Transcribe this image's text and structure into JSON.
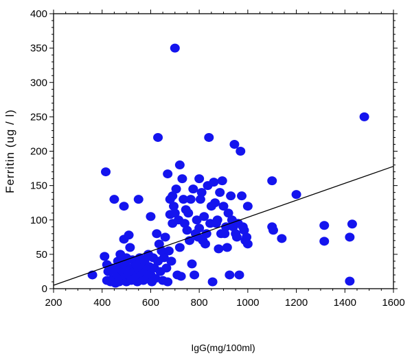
{
  "chart_data": {
    "type": "scatter",
    "title": "",
    "xlabel": "IgG(mg/100ml)",
    "ylabel": "Ferritin (ug / l)",
    "xlim": [
      200,
      1600
    ],
    "ylim": [
      0,
      400
    ],
    "xticks": [
      200,
      400,
      600,
      800,
      1000,
      1200,
      1400,
      1600
    ],
    "yticks": [
      0,
      50,
      100,
      150,
      200,
      250,
      300,
      350,
      400
    ],
    "grid": false,
    "legend": "none",
    "colors": {
      "points": "#1414ee",
      "fit_line": "#000000",
      "axes": "#000000"
    },
    "series": [
      {
        "points": [
          [
            360,
            20
          ],
          [
            410,
            47
          ],
          [
            415,
            170
          ],
          [
            420,
            35
          ],
          [
            420,
            12
          ],
          [
            425,
            25
          ],
          [
            435,
            10
          ],
          [
            440,
            30
          ],
          [
            445,
            15
          ],
          [
            450,
            130
          ],
          [
            455,
            8
          ],
          [
            460,
            20
          ],
          [
            465,
            40
          ],
          [
            470,
            10
          ],
          [
            470,
            30
          ],
          [
            475,
            50
          ],
          [
            480,
            15
          ],
          [
            485,
            25
          ],
          [
            490,
            120
          ],
          [
            490,
            72
          ],
          [
            495,
            35
          ],
          [
            500,
            10
          ],
          [
            500,
            45
          ],
          [
            505,
            20
          ],
          [
            510,
            78
          ],
          [
            515,
            60
          ],
          [
            520,
            30
          ],
          [
            520,
            12
          ],
          [
            525,
            42
          ],
          [
            530,
            25
          ],
          [
            535,
            15
          ],
          [
            540,
            35
          ],
          [
            545,
            10
          ],
          [
            550,
            130
          ],
          [
            550,
            28
          ],
          [
            555,
            45
          ],
          [
            560,
            20
          ],
          [
            565,
            35
          ],
          [
            570,
            12
          ],
          [
            575,
            40
          ],
          [
            580,
            25
          ],
          [
            585,
            15
          ],
          [
            590,
            50
          ],
          [
            595,
            32
          ],
          [
            600,
            105
          ],
          [
            600,
            20
          ],
          [
            605,
            10
          ],
          [
            610,
            45
          ],
          [
            615,
            30
          ],
          [
            620,
            15
          ],
          [
            625,
            80
          ],
          [
            630,
            220
          ],
          [
            630,
            40
          ],
          [
            635,
            65
          ],
          [
            640,
            25
          ],
          [
            645,
            55
          ],
          [
            650,
            12
          ],
          [
            655,
            45
          ],
          [
            660,
            75
          ],
          [
            665,
            30
          ],
          [
            670,
            167
          ],
          [
            670,
            10
          ],
          [
            675,
            55
          ],
          [
            680,
            130
          ],
          [
            680,
            108
          ],
          [
            685,
            40
          ],
          [
            690,
            95
          ],
          [
            690,
            135
          ],
          [
            695,
            120
          ],
          [
            700,
            350
          ],
          [
            700,
            110
          ],
          [
            705,
            145
          ],
          [
            710,
            20
          ],
          [
            715,
            100
          ],
          [
            720,
            180
          ],
          [
            720,
            60
          ],
          [
            725,
            18
          ],
          [
            730,
            160
          ],
          [
            735,
            130
          ],
          [
            740,
            95
          ],
          [
            745,
            115
          ],
          [
            750,
            85
          ],
          [
            755,
            110
          ],
          [
            760,
            70
          ],
          [
            765,
            130
          ],
          [
            770,
            36
          ],
          [
            775,
            145
          ],
          [
            780,
            20
          ],
          [
            785,
            80
          ],
          [
            790,
            100
          ],
          [
            795,
            75
          ],
          [
            800,
            160
          ],
          [
            800,
            88
          ],
          [
            805,
            130
          ],
          [
            810,
            140
          ],
          [
            815,
            70
          ],
          [
            820,
            105
          ],
          [
            825,
            65
          ],
          [
            830,
            80
          ],
          [
            835,
            150
          ],
          [
            840,
            220
          ],
          [
            845,
            95
          ],
          [
            850,
            120
          ],
          [
            855,
            10
          ],
          [
            860,
            155
          ],
          [
            865,
            125
          ],
          [
            870,
            95
          ],
          [
            875,
            100
          ],
          [
            880,
            58
          ],
          [
            885,
            140
          ],
          [
            890,
            80
          ],
          [
            895,
            157
          ],
          [
            900,
            120
          ],
          [
            905,
            80
          ],
          [
            910,
            90
          ],
          [
            915,
            60
          ],
          [
            920,
            110
          ],
          [
            925,
            20
          ],
          [
            930,
            135
          ],
          [
            935,
            100
          ],
          [
            940,
            90
          ],
          [
            945,
            210
          ],
          [
            950,
            80
          ],
          [
            955,
            75
          ],
          [
            960,
            95
          ],
          [
            965,
            20
          ],
          [
            970,
            200
          ],
          [
            975,
            135
          ],
          [
            980,
            90
          ],
          [
            985,
            85
          ],
          [
            990,
            70
          ],
          [
            995,
            75
          ],
          [
            1000,
            120
          ],
          [
            1000,
            65
          ],
          [
            1100,
            157
          ],
          [
            1100,
            90
          ],
          [
            1105,
            85
          ],
          [
            1140,
            73
          ],
          [
            1200,
            137
          ],
          [
            1315,
            92
          ],
          [
            1315,
            69
          ],
          [
            1420,
            75
          ],
          [
            1420,
            11
          ],
          [
            1430,
            94
          ],
          [
            1480,
            250
          ]
        ]
      }
    ],
    "fit_line": {
      "x": [
        200,
        1600
      ],
      "y": [
        5,
        178
      ]
    }
  }
}
